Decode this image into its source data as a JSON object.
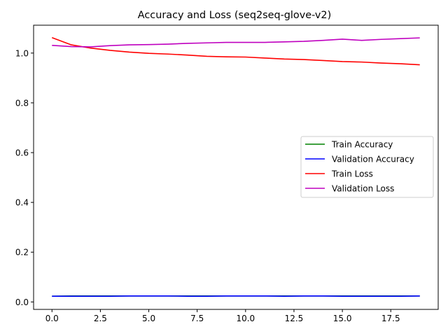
{
  "chart_data": {
    "type": "line",
    "title": "Accuracy and Loss (seq2seq-glove-v2)",
    "xlabel": "",
    "ylabel": "",
    "xlim": [
      -0.95,
      19.95
    ],
    "ylim": [
      -0.03,
      1.112
    ],
    "xticks": [
      0.0,
      2.5,
      5.0,
      7.5,
      10.0,
      12.5,
      15.0,
      17.5
    ],
    "xtick_labels": [
      "0.0",
      "2.5",
      "5.0",
      "7.5",
      "10.0",
      "12.5",
      "15.0",
      "17.5"
    ],
    "yticks": [
      0.0,
      0.2,
      0.4,
      0.6,
      0.8,
      1.0
    ],
    "ytick_labels": [
      "0.0",
      "0.2",
      "0.4",
      "0.6",
      "0.8",
      "1.0"
    ],
    "grid": false,
    "legend_position": "center-right",
    "x": [
      0,
      1,
      2,
      3,
      4,
      5,
      6,
      7,
      8,
      9,
      10,
      11,
      12,
      13,
      14,
      15,
      16,
      17,
      18,
      19
    ],
    "series": [
      {
        "name": "Train Accuracy",
        "color": "#008000",
        "values": [
          0.023,
          0.024,
          0.024,
          0.024,
          0.024,
          0.024,
          0.024,
          0.024,
          0.024,
          0.024,
          0.024,
          0.024,
          0.024,
          0.024,
          0.024,
          0.024,
          0.024,
          0.024,
          0.024,
          0.024
        ]
      },
      {
        "name": "Validation Accuracy",
        "color": "#0000ff",
        "values": [
          0.023,
          0.023,
          0.023,
          0.023,
          0.024,
          0.024,
          0.024,
          0.023,
          0.023,
          0.024,
          0.024,
          0.024,
          0.023,
          0.024,
          0.024,
          0.023,
          0.023,
          0.023,
          0.023,
          0.024
        ]
      },
      {
        "name": "Train Loss",
        "color": "#ff0000",
        "values": [
          1.062,
          1.033,
          1.02,
          1.011,
          1.004,
          0.999,
          0.996,
          0.992,
          0.987,
          0.985,
          0.984,
          0.98,
          0.976,
          0.974,
          0.97,
          0.966,
          0.964,
          0.96,
          0.957,
          0.953
        ]
      },
      {
        "name": "Validation Loss",
        "color": "#bf00bf",
        "values": [
          1.031,
          1.026,
          1.025,
          1.03,
          1.033,
          1.034,
          1.036,
          1.039,
          1.041,
          1.043,
          1.043,
          1.043,
          1.045,
          1.047,
          1.051,
          1.056,
          1.051,
          1.055,
          1.058,
          1.061
        ]
      }
    ]
  }
}
